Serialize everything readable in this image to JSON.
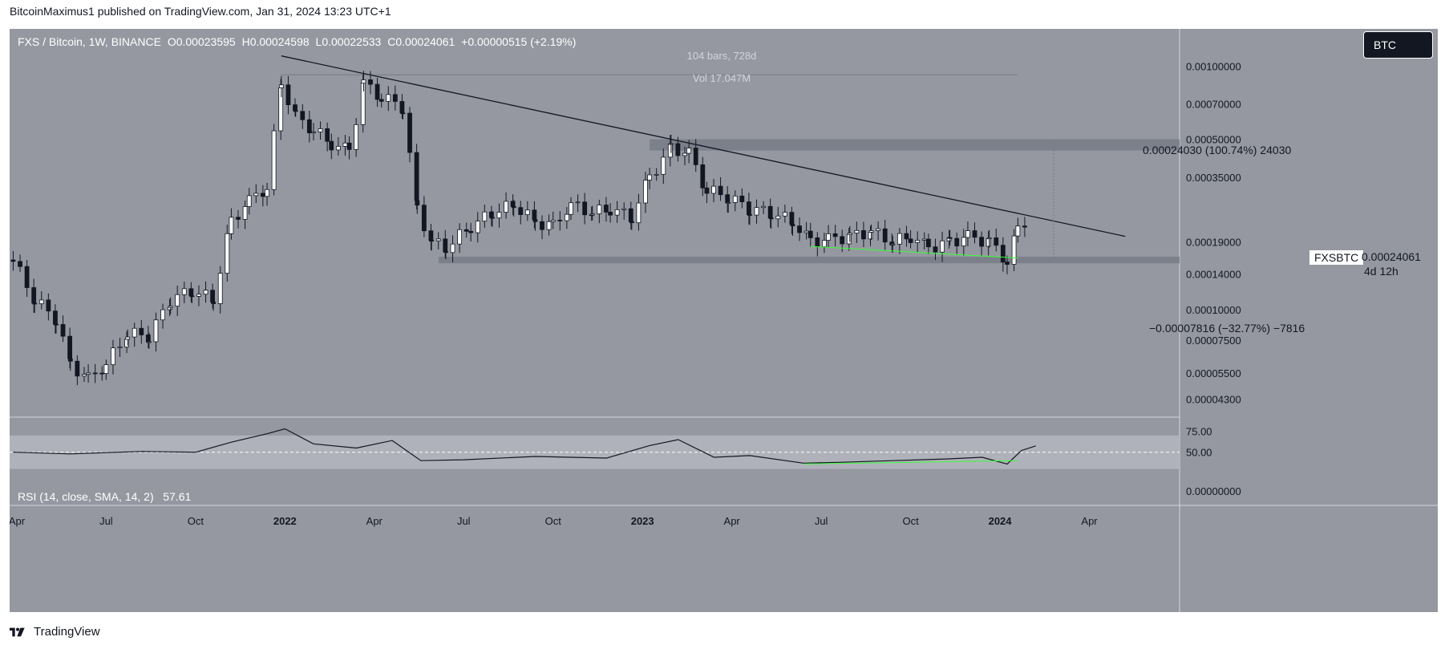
{
  "header": {
    "published": "BitcoinMaximus1 published on TradingView.com, Jan 31, 2024 13:23 UTC+1"
  },
  "legend": {
    "symbol": "FXS / Bitcoin, 1W, BINANCE",
    "open": "O0.00023595",
    "high": "H0.00024598",
    "low": "L0.00022533",
    "close": "C0.00024061",
    "change": "+0.00000515 (+2.19%)"
  },
  "info": {
    "bars": "104 bars, 728d",
    "vol": "Vol 17.047M"
  },
  "currency_button": "BTC",
  "measure": {
    "up": "0.00024030 (100.74%) 24030",
    "down": "−0.00007816 (−32.77%) −7816"
  },
  "symbol_tag": "FXSBTC",
  "last_price": "0.00024061",
  "countdown": "4d 12h",
  "rsi_legend": {
    "label": "RSI (14, close, SMA, 14, 2)",
    "value": "57.61"
  },
  "footer": {
    "brand": "TradingView"
  },
  "colors": {
    "background": "#9598a1",
    "accent": "#131722",
    "support_line": "#3aff36",
    "rsi_band": "#b2b5be"
  },
  "chart_data": {
    "type": "candlestick",
    "title": "FXS / Bitcoin, 1W, BINANCE",
    "y_scale": "log",
    "price_ticks": [
      "0.00100000",
      "0.00070000",
      "0.00050000",
      "0.00035000",
      "0.00019000",
      "0.00014000",
      "0.00010000",
      "0.00007500",
      "0.00005500",
      "0.00004300"
    ],
    "price_tick_values": [
      0.001,
      0.0007,
      0.0005,
      0.00035,
      0.00019,
      0.00014,
      0.0001,
      7.5e-05,
      5.5e-05,
      4.3e-05
    ],
    "x_ticks": [
      "Apr",
      "Jul",
      "Oct",
      "2022",
      "Apr",
      "Jul",
      "Oct",
      "2023",
      "Apr",
      "Jul",
      "Oct",
      "2024",
      "Apr"
    ],
    "x_tick_values": [
      2021.25,
      2021.5,
      2021.75,
      2022.0,
      2022.25,
      2022.5,
      2022.75,
      2023.0,
      2023.25,
      2023.5,
      2023.75,
      2024.0,
      2024.25
    ],
    "x_range": [
      2021.23,
      2024.5
    ],
    "series": [
      {
        "name": "FXS/BTC close",
        "points": [
          [
            2021.24,
            0.00016
          ],
          [
            2021.3,
            0.00011
          ],
          [
            2021.36,
            9.2e-05
          ],
          [
            2021.4,
            6e-05
          ],
          [
            2021.45,
            5.2e-05
          ],
          [
            2021.5,
            6e-05
          ],
          [
            2021.56,
            8e-05
          ],
          [
            2021.62,
            7.8e-05
          ],
          [
            2021.68,
            0.00011
          ],
          [
            2021.74,
            0.00012
          ],
          [
            2021.8,
            0.00011
          ],
          [
            2021.85,
            0.00023
          ],
          [
            2021.9,
            0.00028
          ],
          [
            2021.95,
            0.00032
          ],
          [
            2021.99,
            0.00085
          ],
          [
            2022.03,
            0.00062
          ],
          [
            2022.08,
            0.00055
          ],
          [
            2022.13,
            0.00048
          ],
          [
            2022.18,
            0.00045
          ],
          [
            2022.22,
            0.00085
          ],
          [
            2022.27,
            0.00075
          ],
          [
            2022.33,
            0.00068
          ],
          [
            2022.37,
            0.00026
          ],
          [
            2022.41,
            0.00019
          ],
          [
            2022.45,
            0.00018
          ],
          [
            2022.52,
            0.00022
          ],
          [
            2022.58,
            0.00025
          ],
          [
            2022.64,
            0.00027
          ],
          [
            2022.7,
            0.00023
          ],
          [
            2022.75,
            0.00022
          ],
          [
            2022.8,
            0.00027
          ],
          [
            2022.86,
            0.00025
          ],
          [
            2022.91,
            0.00026
          ],
          [
            2022.97,
            0.00024
          ],
          [
            2023.02,
            0.00035
          ],
          [
            2023.08,
            0.00046
          ],
          [
            2023.13,
            0.00044
          ],
          [
            2023.18,
            0.00031
          ],
          [
            2023.24,
            0.00029
          ],
          [
            2023.3,
            0.00026
          ],
          [
            2023.36,
            0.00025
          ],
          [
            2023.42,
            0.00023
          ],
          [
            2023.47,
            0.00019
          ],
          [
            2023.52,
            0.000195
          ],
          [
            2023.58,
            0.0002
          ],
          [
            2023.64,
            0.00021
          ],
          [
            2023.7,
            0.00019
          ],
          [
            2023.75,
            0.0002
          ],
          [
            2023.8,
            0.00018
          ],
          [
            2023.86,
            0.00019
          ],
          [
            2023.91,
            0.0002
          ],
          [
            2023.97,
            0.00019
          ],
          [
            2024.02,
            0.00016
          ],
          [
            2024.05,
            0.00021
          ],
          [
            2024.08,
            0.00024
          ]
        ]
      }
    ],
    "key_levels": {
      "resistance_zone": [
        0.00045,
        0.0005
      ],
      "support_zone": [
        0.000155,
        0.000165
      ],
      "measure_up_target": 0.00048,
      "measure_down_target": 0.00016
    },
    "trendline": {
      "from": [
        2021.99,
        0.0011
      ],
      "to": [
        2024.35,
        0.0002
      ]
    },
    "rsi": {
      "label": "RSI (14, close, SMA, 14, 2)",
      "last": 57.61,
      "ticks": [
        "75.00",
        "50.00",
        "0.00000000"
      ],
      "tick_values": [
        75,
        50,
        0
      ],
      "points": [
        [
          2021.24,
          50
        ],
        [
          2021.4,
          48
        ],
        [
          2021.6,
          51
        ],
        [
          2021.75,
          50
        ],
        [
          2021.85,
          62
        ],
        [
          2021.95,
          72
        ],
        [
          2022.0,
          78
        ],
        [
          2022.08,
          60
        ],
        [
          2022.2,
          55
        ],
        [
          2022.3,
          64
        ],
        [
          2022.38,
          40
        ],
        [
          2022.5,
          41
        ],
        [
          2022.7,
          45
        ],
        [
          2022.9,
          43
        ],
        [
          2023.02,
          58
        ],
        [
          2023.1,
          65
        ],
        [
          2023.2,
          44
        ],
        [
          2023.3,
          46
        ],
        [
          2023.45,
          37
        ],
        [
          2023.55,
          38
        ],
        [
          2023.7,
          40
        ],
        [
          2023.85,
          42
        ],
        [
          2023.95,
          44
        ],
        [
          2024.02,
          36
        ],
        [
          2024.06,
          52
        ],
        [
          2024.1,
          57.61
        ]
      ]
    }
  }
}
